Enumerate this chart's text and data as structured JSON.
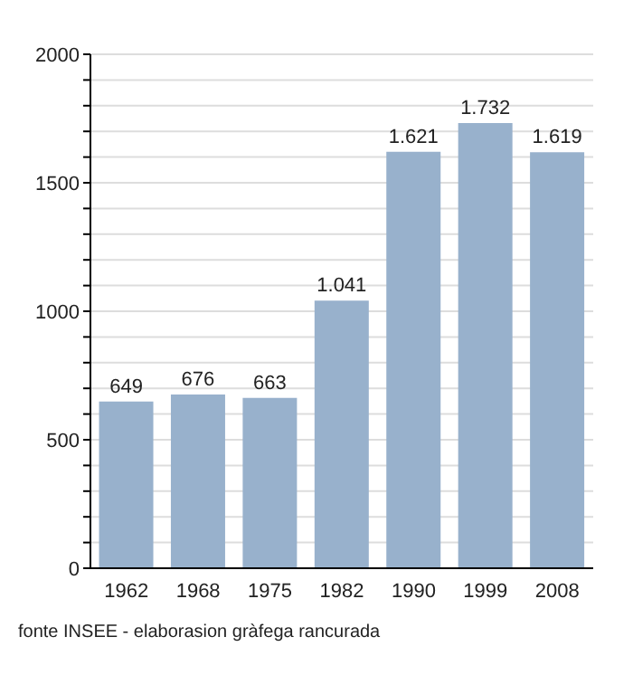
{
  "chart_data": {
    "type": "bar",
    "categories": [
      "1962",
      "1968",
      "1975",
      "1982",
      "1990",
      "1999",
      "2008"
    ],
    "values": [
      649,
      676,
      663,
      1041,
      1621,
      1732,
      1619
    ],
    "value_labels": [
      "649",
      "676",
      "663",
      "1.041",
      "1.621",
      "1.732",
      "1.619"
    ],
    "color": "#98b1cc",
    "ylim": [
      0,
      2000
    ],
    "yticks": [
      0,
      {
        "value": 100,
        "label": null
      },
      {
        "value": 200,
        "label": null
      },
      {
        "value": 300,
        "label": null
      },
      {
        "value": 400,
        "label": null
      },
      500,
      {
        "value": 600,
        "label": null
      },
      {
        "value": 700,
        "label": null
      },
      {
        "value": 800,
        "label": null
      },
      {
        "value": 900,
        "label": null
      },
      1000,
      {
        "value": 1100,
        "label": null
      },
      {
        "value": 1200,
        "label": null
      },
      {
        "value": 1300,
        "label": null
      },
      {
        "value": 1400,
        "label": null
      },
      1500,
      {
        "value": 1600,
        "label": null
      },
      {
        "value": 1700,
        "label": null
      },
      {
        "value": 1800,
        "label": null
      },
      {
        "value": 1900,
        "label": null
      },
      2000
    ],
    "grid": "y",
    "annotations": [
      "fonte INSEE - elaborasion gràfega rancurada"
    ]
  }
}
